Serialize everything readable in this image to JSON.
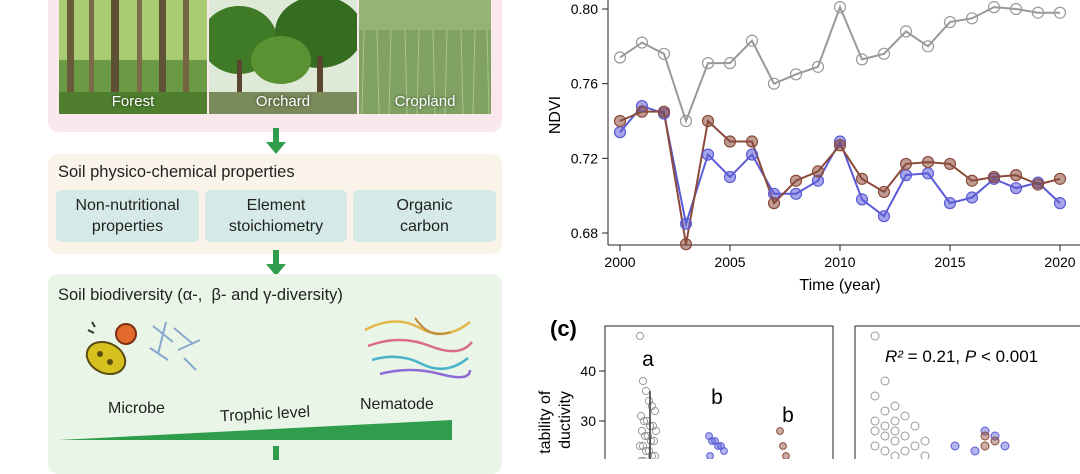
{
  "diagram": {
    "land_uses": [
      {
        "label": "Forest"
      },
      {
        "label": "Orchard"
      },
      {
        "label": "Cropland"
      }
    ],
    "soil_properties": {
      "title": "Soil physico-chemical properties",
      "items": [
        {
          "line1": "Non-nutritional",
          "line2": "properties"
        },
        {
          "line1": "Element",
          "line2": "stoichiometry"
        },
        {
          "line1": "Organic",
          "line2": "carbon"
        }
      ]
    },
    "soil_biodiversity": {
      "title": "Soil biodiversity (α-,  β- and γ-diversity)",
      "microbe_label": "Microbe",
      "nematode_label": "Nematode",
      "trophic_label": "Trophic level"
    }
  },
  "colors": {
    "gray": "#999999",
    "blue": "#5b5bd6",
    "brown": "#8b4a3a",
    "green": "#2f9d4c"
  },
  "chart_data": [
    {
      "type": "line",
      "title": "",
      "xlabel": "Time (year)",
      "ylabel": "NDVI",
      "xlim": [
        2000,
        2020
      ],
      "ylim": [
        0.665,
        0.805
      ],
      "xticks": [
        "2000",
        "2005",
        "2010",
        "2015",
        "2020"
      ],
      "yticks": [
        "0.68",
        "0.72",
        "0.76",
        "0.80"
      ],
      "x": [
        2000,
        2001,
        2002,
        2003,
        2004,
        2005,
        2006,
        2007,
        2008,
        2009,
        2010,
        2011,
        2012,
        2013,
        2014,
        2015,
        2016,
        2017,
        2018,
        2019,
        2020
      ],
      "series": [
        {
          "name": "gray",
          "color": "#999999",
          "values": [
            0.774,
            0.782,
            0.776,
            0.74,
            0.771,
            0.771,
            0.783,
            0.76,
            0.765,
            0.769,
            0.801,
            0.773,
            0.776,
            0.788,
            0.78,
            0.793,
            0.795,
            0.801,
            0.8,
            0.798,
            0.798
          ]
        },
        {
          "name": "blue",
          "color": "#5b5bd6",
          "values": [
            0.734,
            0.748,
            0.744,
            0.685,
            0.722,
            0.71,
            0.722,
            0.701,
            0.701,
            0.708,
            0.729,
            0.698,
            0.689,
            0.711,
            0.712,
            0.696,
            0.699,
            0.709,
            0.704,
            0.707,
            0.696
          ]
        },
        {
          "name": "brown",
          "color": "#8b4a3a",
          "values": [
            0.74,
            0.745,
            0.745,
            0.674,
            0.74,
            0.729,
            0.729,
            0.696,
            0.708,
            0.713,
            0.727,
            0.709,
            0.702,
            0.717,
            0.718,
            0.717,
            0.708,
            0.71,
            0.711,
            0.706,
            0.709
          ]
        }
      ]
    },
    {
      "type": "scatter",
      "panel_label": "(c)",
      "ylabel": "tability of\nductivity",
      "ylim": [
        20,
        50
      ],
      "yticks": [
        "40",
        "30"
      ],
      "groups": [
        {
          "name": "gray",
          "letter": "a",
          "color": "#999999",
          "values": [
            47,
            38,
            36,
            34,
            33,
            32,
            31,
            30,
            30,
            29,
            29,
            28,
            28,
            27,
            27,
            26,
            26,
            25,
            25,
            24,
            24,
            23,
            23,
            22,
            22,
            21,
            21
          ]
        },
        {
          "name": "blue",
          "letter": "b",
          "color": "#5b5bd6",
          "values": [
            27,
            26,
            26,
            25,
            25,
            24,
            23
          ]
        },
        {
          "name": "brown",
          "letter": "b",
          "color": "#8b4a3a",
          "values": [
            28,
            25,
            23
          ]
        }
      ]
    },
    {
      "type": "scatter",
      "annotation_r2": "R²",
      "annotation_rest": " = 0.21, ",
      "annotation_p": "P",
      "annotation_tail": " < 0.001",
      "points_gray": [
        [
          1,
          47
        ],
        [
          2,
          38
        ],
        [
          1,
          35
        ],
        [
          3,
          33
        ],
        [
          2,
          32
        ],
        [
          4,
          31
        ],
        [
          1,
          30
        ],
        [
          3,
          30
        ],
        [
          2,
          29
        ],
        [
          5,
          29
        ],
        [
          1,
          28
        ],
        [
          3,
          28
        ],
        [
          4,
          27
        ],
        [
          2,
          27
        ],
        [
          6,
          26
        ],
        [
          3,
          26
        ],
        [
          1,
          25
        ],
        [
          5,
          25
        ],
        [
          2,
          24
        ],
        [
          4,
          24
        ],
        [
          3,
          23
        ],
        [
          6,
          23
        ]
      ],
      "points_blue": [
        [
          9,
          25
        ],
        [
          12,
          28
        ],
        [
          13,
          27
        ],
        [
          14,
          25
        ],
        [
          11,
          24
        ]
      ],
      "points_brown": [
        [
          12,
          27
        ],
        [
          13,
          26
        ],
        [
          12,
          25
        ]
      ]
    }
  ]
}
